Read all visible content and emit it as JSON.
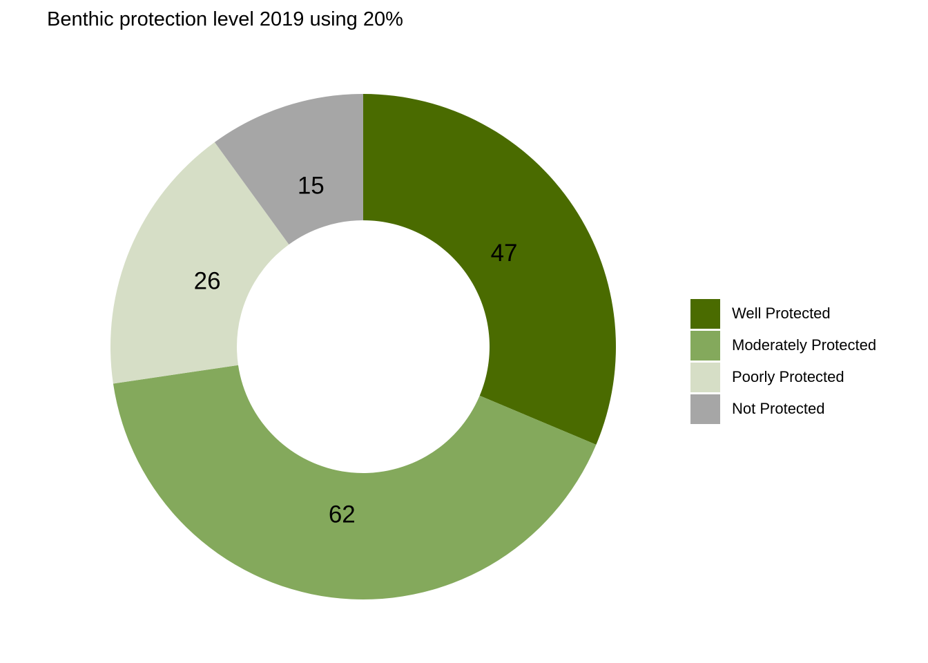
{
  "chart_data": {
    "type": "pie",
    "variant": "donut",
    "title": "Benthic protection level 2019 using 20%",
    "categories": [
      "Well Protected",
      "Moderately Protected",
      "Poorly Protected",
      "Not Protected"
    ],
    "values": [
      47,
      62,
      26,
      15
    ],
    "colors": [
      "#4a6b00",
      "#84a95c",
      "#d6dec6",
      "#a6a6a6"
    ],
    "legend_position": "right",
    "data_labels": [
      "47",
      "62",
      "26",
      "15"
    ],
    "start": "12 o'clock, clockwise"
  }
}
